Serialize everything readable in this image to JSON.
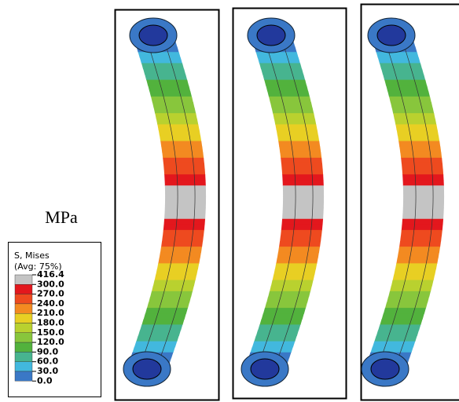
{
  "unit_label": "MPa",
  "legend": {
    "title_lines": [
      "S, Mises",
      "(Avg: 75%)"
    ],
    "labels": [
      "416.4",
      "300.0",
      "270.0",
      "240.0",
      "210.0",
      "180.0",
      "150.0",
      "120.0",
      "90.0",
      "60.0",
      "30.0",
      "0.0"
    ],
    "colors": [
      "#c4c4c4",
      "#e3171d",
      "#ee4a1f",
      "#f38a21",
      "#e8cf23",
      "#b9d12f",
      "#88c63c",
      "#52b23d",
      "#47b48f",
      "#42b8de",
      "#3a78c6",
      "#22399c"
    ]
  }
}
